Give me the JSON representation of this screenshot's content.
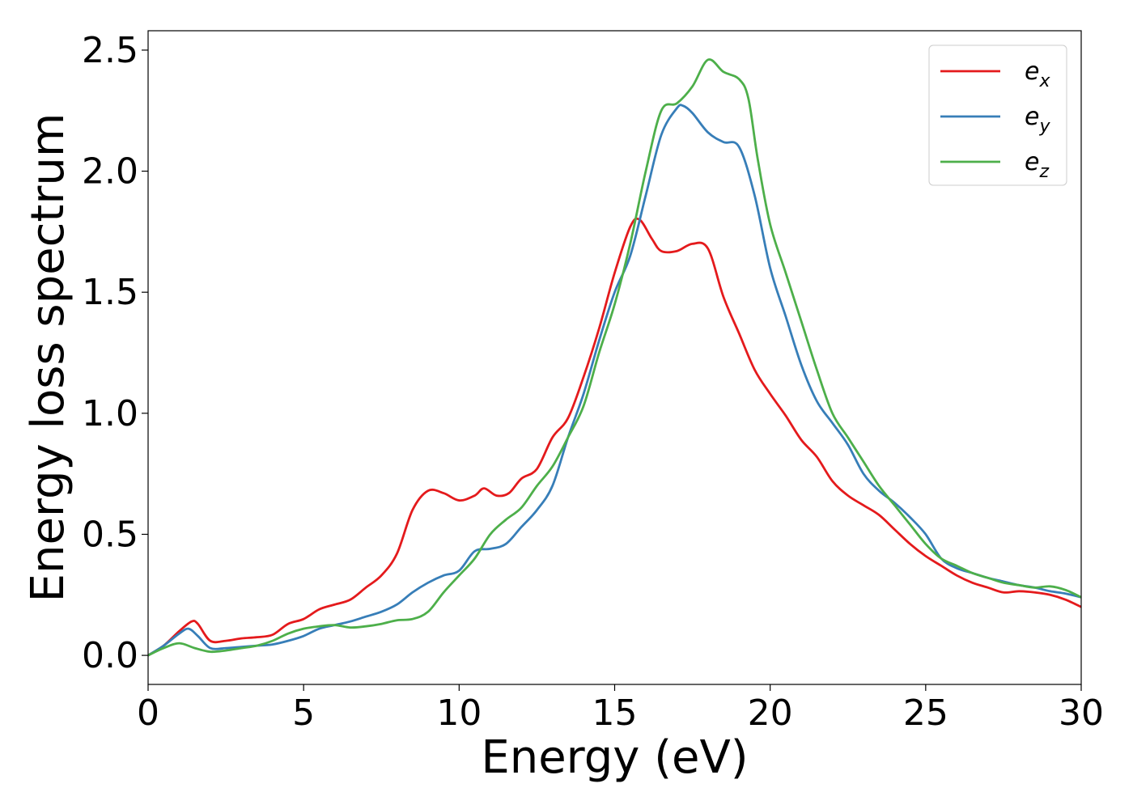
{
  "chart_data": {
    "type": "line",
    "title": "",
    "xlabel": "Energy (eV)",
    "ylabel": "Energy loss spectrum",
    "xlim": [
      0,
      30
    ],
    "ylim": [
      -0.12,
      2.58
    ],
    "xticks": [
      0,
      5,
      10,
      15,
      20,
      25,
      30
    ],
    "xtick_labels": [
      "0",
      "5",
      "10",
      "15",
      "20",
      "25",
      "30"
    ],
    "yticks": [
      0.0,
      0.5,
      1.0,
      1.5,
      2.0,
      2.5
    ],
    "ytick_labels": [
      "0.0",
      "0.5",
      "1.0",
      "1.5",
      "2.0",
      "2.5"
    ],
    "grid": false,
    "legend_position": "top-right",
    "series": [
      {
        "name": "e_x",
        "legend_base": "e",
        "legend_sub": "x",
        "color": "#e41a1c",
        "x": [
          0,
          0.5,
          1.0,
          1.4,
          1.6,
          2.0,
          2.5,
          3.0,
          3.5,
          4.0,
          4.5,
          5.0,
          5.5,
          6.0,
          6.5,
          7.0,
          7.5,
          8.0,
          8.5,
          9.0,
          9.5,
          10.0,
          10.5,
          10.8,
          11.2,
          11.6,
          12.0,
          12.5,
          13.0,
          13.5,
          14.0,
          14.5,
          15.0,
          15.5,
          15.8,
          16.2,
          16.5,
          17.0,
          17.5,
          18.0,
          18.5,
          19.0,
          19.5,
          20.0,
          20.5,
          21.0,
          21.5,
          22.0,
          22.5,
          23.0,
          23.5,
          24.0,
          24.5,
          25.0,
          25.5,
          26.0,
          26.5,
          27.0,
          27.5,
          28.0,
          28.5,
          29.0,
          29.5,
          30.0
        ],
        "y": [
          0.0,
          0.04,
          0.1,
          0.14,
          0.13,
          0.06,
          0.06,
          0.07,
          0.075,
          0.085,
          0.13,
          0.15,
          0.19,
          0.21,
          0.23,
          0.28,
          0.33,
          0.42,
          0.6,
          0.68,
          0.67,
          0.64,
          0.66,
          0.69,
          0.66,
          0.67,
          0.73,
          0.77,
          0.9,
          0.98,
          1.15,
          1.35,
          1.58,
          1.77,
          1.8,
          1.72,
          1.67,
          1.67,
          1.7,
          1.68,
          1.48,
          1.33,
          1.18,
          1.08,
          0.99,
          0.89,
          0.82,
          0.72,
          0.66,
          0.62,
          0.58,
          0.52,
          0.46,
          0.41,
          0.37,
          0.33,
          0.3,
          0.28,
          0.26,
          0.265,
          0.26,
          0.25,
          0.23,
          0.2
        ]
      },
      {
        "name": "e_y",
        "legend_base": "e",
        "legend_sub": "y",
        "color": "#377eb8",
        "x": [
          0,
          0.5,
          1.0,
          1.3,
          1.6,
          2.0,
          2.5,
          3.0,
          3.5,
          4.0,
          4.5,
          5.0,
          5.5,
          6.0,
          6.5,
          7.0,
          7.5,
          8.0,
          8.5,
          9.0,
          9.5,
          10.0,
          10.5,
          11.0,
          11.5,
          12.0,
          12.5,
          13.0,
          13.5,
          14.0,
          14.5,
          15.0,
          15.5,
          16.0,
          16.5,
          17.0,
          17.2,
          17.5,
          18.0,
          18.5,
          19.0,
          19.5,
          20.0,
          20.5,
          21.0,
          21.5,
          22.0,
          22.5,
          23.0,
          23.5,
          24.0,
          24.5,
          25.0,
          25.5,
          26.0,
          26.5,
          27.0,
          27.5,
          28.0,
          28.5,
          29.0,
          29.5,
          30.0
        ],
        "y": [
          0.0,
          0.04,
          0.09,
          0.11,
          0.08,
          0.03,
          0.03,
          0.035,
          0.04,
          0.045,
          0.06,
          0.08,
          0.11,
          0.125,
          0.14,
          0.16,
          0.18,
          0.21,
          0.26,
          0.3,
          0.33,
          0.35,
          0.43,
          0.44,
          0.46,
          0.53,
          0.6,
          0.7,
          0.9,
          1.08,
          1.3,
          1.5,
          1.65,
          1.9,
          2.15,
          2.26,
          2.27,
          2.24,
          2.16,
          2.12,
          2.1,
          1.9,
          1.6,
          1.4,
          1.2,
          1.05,
          0.96,
          0.87,
          0.75,
          0.68,
          0.63,
          0.57,
          0.5,
          0.4,
          0.36,
          0.34,
          0.32,
          0.305,
          0.29,
          0.28,
          0.265,
          0.255,
          0.24
        ]
      },
      {
        "name": "e_z",
        "legend_base": "e",
        "legend_sub": "z",
        "color": "#4daf4a",
        "x": [
          0,
          0.5,
          1.0,
          1.5,
          2.0,
          2.5,
          3.0,
          3.5,
          4.0,
          4.5,
          5.0,
          5.5,
          6.0,
          6.5,
          7.0,
          7.5,
          8.0,
          8.5,
          9.0,
          9.5,
          10.0,
          10.5,
          11.0,
          11.5,
          12.0,
          12.5,
          13.0,
          13.5,
          14.0,
          14.5,
          15.0,
          15.5,
          16.0,
          16.5,
          17.0,
          17.5,
          18.0,
          18.5,
          19.0,
          19.3,
          19.6,
          20.0,
          20.5,
          21.0,
          21.5,
          22.0,
          22.5,
          23.0,
          23.5,
          24.0,
          24.5,
          25.0,
          25.5,
          26.0,
          26.5,
          27.0,
          27.5,
          28.0,
          28.5,
          29.0,
          29.5,
          30.0
        ],
        "y": [
          0.0,
          0.03,
          0.05,
          0.03,
          0.015,
          0.02,
          0.03,
          0.04,
          0.06,
          0.09,
          0.11,
          0.12,
          0.125,
          0.115,
          0.12,
          0.13,
          0.145,
          0.15,
          0.18,
          0.26,
          0.33,
          0.4,
          0.5,
          0.56,
          0.61,
          0.7,
          0.78,
          0.9,
          1.03,
          1.25,
          1.45,
          1.7,
          2.0,
          2.25,
          2.28,
          2.35,
          2.46,
          2.41,
          2.38,
          2.3,
          2.05,
          1.78,
          1.58,
          1.38,
          1.18,
          1.0,
          0.9,
          0.8,
          0.7,
          0.62,
          0.54,
          0.46,
          0.4,
          0.37,
          0.34,
          0.32,
          0.3,
          0.29,
          0.28,
          0.285,
          0.27,
          0.24
        ]
      }
    ]
  }
}
